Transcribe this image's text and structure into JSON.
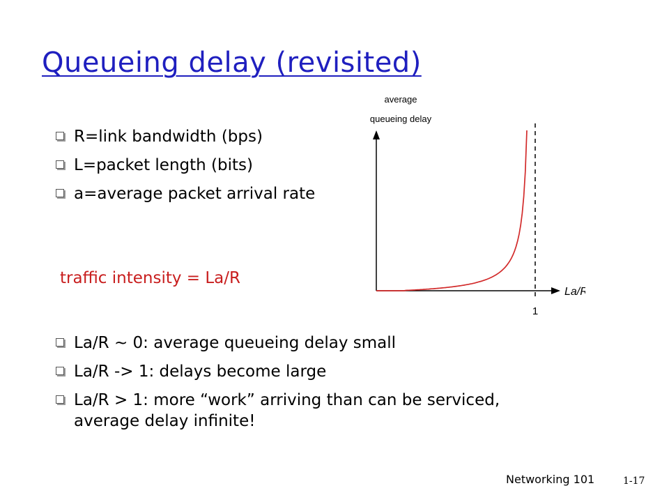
{
  "slide": {
    "title": "Queueing delay (revisited)",
    "bullets_top": [
      {
        "text": "R=link bandwidth (bps)"
      },
      {
        "text": "L=packet length (bits)"
      },
      {
        "text": "a=average packet arrival rate"
      }
    ],
    "traffic_intensity": "traffic intensity = La/R",
    "bullets_bottom": [
      {
        "text": "La/R ~ 0: average queueing delay small"
      },
      {
        "text": "La/R -> 1: delays become large"
      },
      {
        "text": "La/R > 1: more “work” arriving than can be serviced, average delay infinite!"
      }
    ],
    "footer_left": "Networking 101",
    "footer_right": "1-17"
  },
  "figure": {
    "ylabel_line1": "average",
    "ylabel_line2": "queueing delay",
    "xlabel": "La/R",
    "x_tick": "1",
    "curve_color": "#d22a2a",
    "axis_color": "#000000",
    "asymptote_x": 1
  },
  "colors": {
    "title": "#1f1fbf",
    "traffic_text": "#c81e1e",
    "bullet_box": "#555555"
  }
}
